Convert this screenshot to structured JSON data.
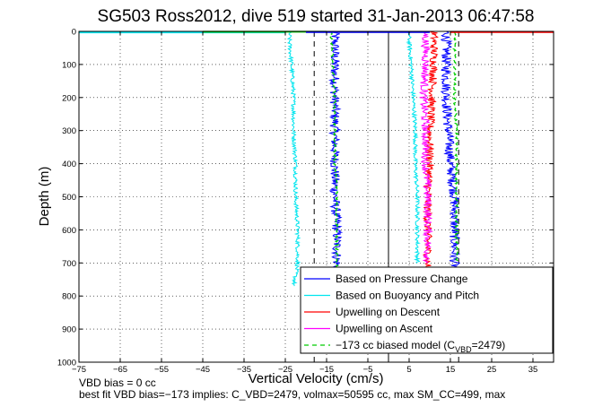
{
  "chart_data": {
    "type": "line",
    "title": "SG503 Ross2012, dive 519 started 31-Jan-2013 06:47:58",
    "xlabel": "Vertical Velocity (cm/s)",
    "ylabel": "Depth (m)",
    "xlim": [
      -75,
      40
    ],
    "ylim": [
      1000,
      0
    ],
    "y_reversed": true,
    "grid": "dotted",
    "legend_position": "lower-right",
    "xticks": [
      "−75",
      "−65",
      "−55",
      "−45",
      "−35",
      "−25",
      "−15",
      "−5",
      "5",
      "15",
      "25",
      "35"
    ],
    "xtick_values": [
      -75,
      -65,
      -55,
      -45,
      -35,
      -25,
      -15,
      -5,
      5,
      15,
      25,
      35
    ],
    "yticks": [
      "0",
      "100",
      "200",
      "300",
      "400",
      "500",
      "600",
      "700",
      "800",
      "900",
      "1000"
    ],
    "ytick_values": [
      0,
      100,
      200,
      300,
      400,
      500,
      600,
      700,
      800,
      900,
      1000
    ],
    "series": [
      {
        "name": "Based on Pressure Change",
        "color": "#0000ff",
        "style": "solid",
        "noise": 1.2,
        "segments": [
          {
            "depth": [
              0,
              30,
              100,
              200,
              300,
              400,
              500,
              600,
              700,
              760
            ],
            "velocity": [
              -13,
              -13,
              -13,
              -13,
              -13,
              -13,
              -13,
              -12.5,
              -12.5,
              -12.5
            ]
          },
          {
            "depth": [
              0,
              30,
              100,
              200,
              300,
              400,
              500,
              600,
              700,
              760
            ],
            "velocity": [
              14,
              14,
              14,
              14,
              14.5,
              15,
              16,
              16,
              16,
              16
            ]
          }
        ]
      },
      {
        "name": "Based on Buoyancy and Pitch",
        "color": "#00e5ee",
        "style": "solid",
        "noise": 0.5,
        "segments": [
          {
            "depth": [
              0,
              30,
              100,
              200,
              300,
              400,
              500,
              600,
              700,
              770
            ],
            "velocity": [
              -24,
              -24,
              -23.5,
              -23,
              -23,
              -22.5,
              -22.5,
              -22,
              -22,
              -23
            ]
          },
          {
            "depth": [
              0,
              30,
              100,
              200,
              300,
              400,
              500,
              600,
              700
            ],
            "velocity": [
              5,
              5,
              5.5,
              6,
              6.5,
              6.5,
              7,
              7,
              7
            ]
          }
        ]
      },
      {
        "name": "Upwelling on Descent",
        "color": "#ff0000",
        "style": "solid",
        "noise": 1.0,
        "segments": [
          {
            "depth": [
              0,
              50,
              100,
              200,
              300,
              400,
              500,
              600,
              700,
              760
            ],
            "velocity": [
              11,
              11,
              11,
              10.5,
              10,
              10,
              9.5,
              9.5,
              9.5,
              9.5
            ]
          }
        ]
      },
      {
        "name": "Upwelling on Ascent",
        "color": "#ff00ff",
        "style": "solid",
        "noise": 1.0,
        "segments": [
          {
            "depth": [
              0,
              50,
              100,
              200,
              300,
              400,
              500,
              600,
              700
            ],
            "velocity": [
              9,
              9,
              9,
              8.5,
              9,
              9,
              9.5,
              9.5,
              9.5
            ]
          }
        ]
      },
      {
        "name": "−173 cc biased model (C_VBD=2479)",
        "legend_main": "−173 cc biased model (C",
        "legend_sub": "VBD",
        "legend_tail": "=2479)",
        "color": "#00cc00",
        "style": "dashed",
        "noise": 0.3,
        "segments": [
          {
            "depth": [
              0,
              100,
              200,
              300,
              400,
              500,
              600,
              700,
              760
            ],
            "velocity": [
              -14,
              -13.5,
              -13,
              -13,
              -13,
              -12.5,
              -12.5,
              -12.5,
              -12.5
            ]
          },
          {
            "depth": [
              0,
              100,
              200,
              300,
              400,
              500,
              600,
              700
            ],
            "velocity": [
              16,
              16,
              16,
              16.5,
              16.5,
              16.5,
              16.5,
              16.5
            ]
          }
        ]
      }
    ],
    "reference_lines": [
      {
        "x": 0,
        "style": "solid",
        "color": "#000000"
      },
      {
        "x": -18,
        "style": "dashed",
        "color": "#000000"
      },
      {
        "x": 17,
        "style": "dashed",
        "color": "#000000"
      }
    ],
    "surface_spikes": [
      {
        "color": "#00e5ee",
        "x": [
          -75,
          -25
        ],
        "depth": 3
      },
      {
        "color": "#ff0000",
        "x": [
          15,
          40
        ],
        "depth": 2
      },
      {
        "color": "#00cc00",
        "x": [
          -45,
          -15
        ],
        "depth": 1
      },
      {
        "color": "#0000ff",
        "x": [
          -20,
          10
        ],
        "depth": 2
      }
    ]
  },
  "footnote_1": "VBD bias = 0 cc",
  "footnote_2": "best fit VBD bias=−173 implies: C_VBD=2479, volmax=50595 cc, max SM_CC=499, max"
}
